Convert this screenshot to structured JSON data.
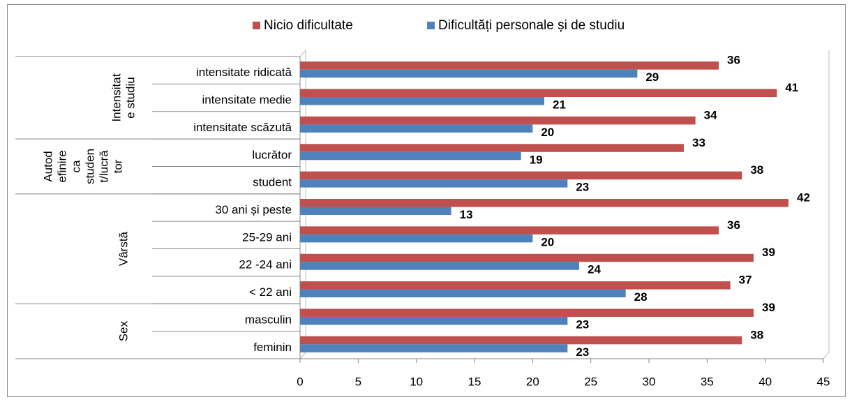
{
  "chart_data": {
    "type": "bar",
    "orientation": "horizontal",
    "categories": [
      "intensitate ridicată",
      "intensitate medie",
      "intensitate scăzută",
      "lucrător",
      "student",
      "30 ani și peste",
      "25-29 ani",
      "22 -24 ani",
      "< 22 ani",
      "masculin",
      "feminin"
    ],
    "groups": [
      {
        "label_lines": [
          "Intensitat",
          "e studiu"
        ],
        "start": 0,
        "end": 2
      },
      {
        "label_lines": [
          "Autod",
          "efinire",
          "ca",
          "studen",
          "t/lucră",
          "tor"
        ],
        "start": 3,
        "end": 4
      },
      {
        "label_lines": [
          "Vârstă"
        ],
        "start": 5,
        "end": 8
      },
      {
        "label_lines": [
          "Sex"
        ],
        "start": 9,
        "end": 10
      }
    ],
    "series": [
      {
        "name": "Nicio dificultate",
        "color": "#c0504d",
        "values": [
          36,
          41,
          34,
          33,
          38,
          42,
          36,
          39,
          37,
          39,
          38
        ]
      },
      {
        "name": "Dificultăți personale și de studiu",
        "color": "#4f81bd",
        "values": [
          29,
          21,
          20,
          19,
          23,
          13,
          20,
          24,
          28,
          23,
          23
        ]
      }
    ],
    "xlim": [
      0,
      45
    ],
    "xticks": [
      0,
      5,
      10,
      15,
      20,
      25,
      30,
      35,
      40,
      45
    ],
    "grid": false,
    "legend": "top"
  }
}
